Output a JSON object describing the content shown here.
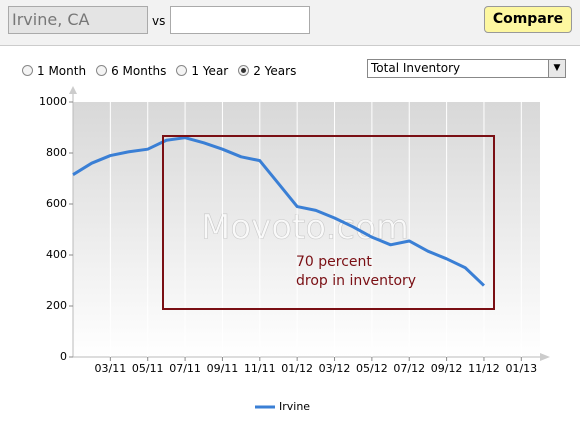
{
  "search": {
    "location": "Irvine, CA",
    "vs": "vs",
    "compare_button": "Compare"
  },
  "time_ranges": [
    "1 Month",
    "6 Months",
    "1 Year",
    "2 Years"
  ],
  "metric_select": "Total Inventory",
  "chart_data": {
    "type": "line",
    "x": [
      "01/11",
      "02/11",
      "03/11",
      "04/11",
      "05/11",
      "06/11",
      "07/11",
      "08/11",
      "09/11",
      "10/11",
      "11/11",
      "12/11",
      "01/12",
      "02/12",
      "03/12",
      "04/12",
      "05/12",
      "06/12",
      "07/12",
      "08/12",
      "09/12",
      "10/12",
      "11/12"
    ],
    "series": [
      {
        "name": "Irvine",
        "color": "#3a7fd5",
        "values": [
          715,
          760,
          790,
          805,
          815,
          850,
          860,
          840,
          815,
          785,
          770,
          680,
          590,
          575,
          545,
          510,
          470,
          440,
          455,
          415,
          385,
          350,
          280
        ]
      }
    ],
    "xlim": [
      "01/11",
      "02/13"
    ],
    "xticks": [
      "03/11",
      "05/11",
      "07/11",
      "09/11",
      "11/11",
      "01/12",
      "03/12",
      "05/12",
      "07/12",
      "09/12",
      "11/12",
      "01/13"
    ],
    "ylim": [
      0,
      1000
    ],
    "yticks": [
      0,
      200,
      400,
      600,
      800,
      1000
    ],
    "grid": true,
    "annotation": [
      "70 percent",
      "drop in inventory"
    ],
    "watermark": "Movoto.com"
  }
}
